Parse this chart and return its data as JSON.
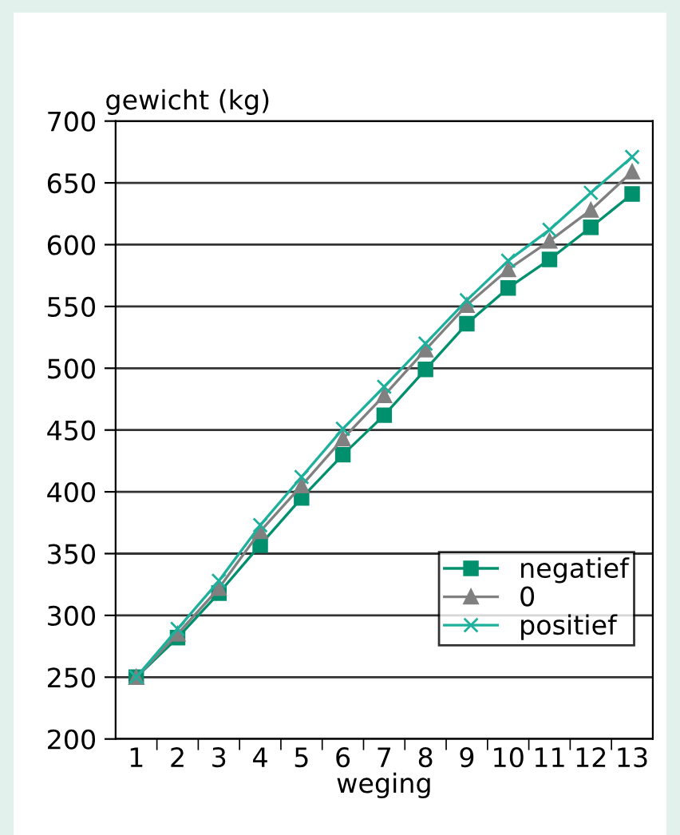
{
  "chart_data": {
    "type": "line",
    "ylabel": "gewicht (kg)",
    "xlabel": "weging",
    "categories": [
      "1",
      "2",
      "3",
      "4",
      "5",
      "6",
      "7",
      "8",
      "9",
      "10",
      "11",
      "12",
      "13"
    ],
    "series": [
      {
        "name": "negatief",
        "color": "#00906e",
        "marker": "square",
        "values": [
          250,
          282,
          318,
          357,
          395,
          430,
          462,
          499,
          536,
          565,
          588,
          614,
          641
        ]
      },
      {
        "name": "0",
        "color": "#808080",
        "marker": "triangle",
        "values": [
          250,
          285,
          322,
          368,
          405,
          443,
          478,
          515,
          551,
          580,
          603,
          628,
          659
        ]
      },
      {
        "name": "positief",
        "color": "#1eb09c",
        "marker": "cross",
        "values": [
          250,
          289,
          328,
          373,
          412,
          451,
          485,
          520,
          555,
          587,
          612,
          642,
          671
        ]
      }
    ],
    "ylim": [
      200,
      700
    ],
    "yticks": [
      200,
      250,
      300,
      350,
      400,
      450,
      500,
      550,
      600,
      650,
      700
    ],
    "grid": "y",
    "legend": "bottom right"
  }
}
